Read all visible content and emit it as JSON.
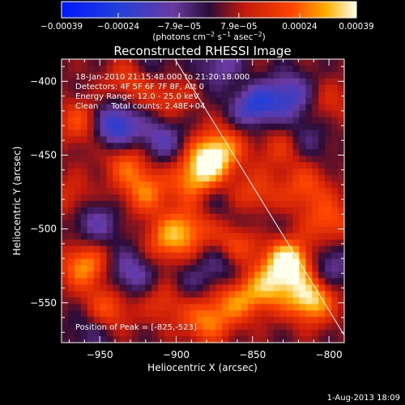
{
  "chart_data": {
    "type": "heatmap",
    "title": "Reconstructed RHESSI Image",
    "xlabel": "Heliocentric X (arcsec)",
    "ylabel": "Heliocentric Y (arcsec)",
    "xlim": [
      -975,
      -790
    ],
    "ylim": [
      -577,
      -385
    ],
    "x_ticks": [
      -950,
      -900,
      -850,
      -800
    ],
    "x_tick_labels": [
      "−950",
      "−900",
      "−850",
      "−800"
    ],
    "y_ticks": [
      -400,
      -450,
      -500,
      -550
    ],
    "y_tick_labels": [
      "−400",
      "−450",
      "−500",
      "−550"
    ],
    "colorbar": {
      "range": [
        -0.00039,
        0.00039
      ],
      "ticks": [
        -0.00039,
        -0.00024,
        -7.9e-05,
        7.9e-05,
        0.00024,
        0.00039
      ],
      "tick_labels": [
        "−0.00039",
        "−0.00024",
        "−7.9e−05",
        "7.9e−05",
        "0.00024",
        "0.00039"
      ],
      "unit_prefix": "(photons cm",
      "unit_exp1": "−2",
      "unit_mid": " s",
      "unit_exp2": "−1",
      "unit_mid2": " asec",
      "unit_exp3": "−2",
      "unit_suffix": ")"
    },
    "info_lines": [
      "18-Jan-2010 21:15:48.000 to 21:20:18.000",
      "Detectors: 4F 5F 6F 7F 8F, Att 0",
      "Energy Range: 12.0 - 25.0 keV",
      "Clean     Total counts: 2.48E+04"
    ],
    "peak_label": "Position of Peak = [-825,-523]",
    "peak": [
      -825,
      -523
    ],
    "limb_line": [
      [
        -902,
        -383
      ],
      [
        -787,
        -577
      ]
    ],
    "sources": [
      {
        "x": -826,
        "y": -523,
        "w": 0.00039
      },
      {
        "x": -812,
        "y": -548,
        "w": 0.00033
      },
      {
        "x": -840,
        "y": -540,
        "w": 0.00022
      },
      {
        "x": -880,
        "y": -455,
        "w": 0.00027
      },
      {
        "x": -870,
        "y": -445,
        "w": 0.0002
      },
      {
        "x": -888,
        "y": -470,
        "w": 0.00022
      },
      {
        "x": -920,
        "y": -475,
        "w": 0.0002
      },
      {
        "x": -932,
        "y": -455,
        "w": 0.00018
      },
      {
        "x": -905,
        "y": -508,
        "w": 0.00022
      },
      {
        "x": -890,
        "y": -498,
        "w": 0.00018
      },
      {
        "x": -960,
        "y": -525,
        "w": 0.00025
      },
      {
        "x": -962,
        "y": -428,
        "w": 0.00018
      },
      {
        "x": -930,
        "y": -400,
        "w": 0.00016
      },
      {
        "x": -905,
        "y": -410,
        "w": 0.00014
      },
      {
        "x": -848,
        "y": -478,
        "w": 0.00017
      },
      {
        "x": -860,
        "y": -510,
        "w": 0.0002
      },
      {
        "x": -830,
        "y": -445,
        "w": 0.00014
      },
      {
        "x": -815,
        "y": -472,
        "w": 0.00016
      },
      {
        "x": -800,
        "y": -495,
        "w": 0.00018
      },
      {
        "x": -945,
        "y": -555,
        "w": 0.0002
      },
      {
        "x": -880,
        "y": -562,
        "w": 0.00022
      },
      {
        "x": -860,
        "y": -548,
        "w": 0.0002
      },
      {
        "x": -905,
        "y": -548,
        "w": 0.00017
      },
      {
        "x": -968,
        "y": -480,
        "w": 0.00012
      },
      {
        "x": -800,
        "y": -415,
        "w": 0.0001
      },
      {
        "x": -940,
        "y": -500,
        "w": 0.00012
      },
      {
        "x": -855,
        "y": -405,
        "w": 0.0001
      },
      {
        "x": -940,
        "y": -430,
        "w": -0.0003
      },
      {
        "x": -940,
        "y": -500,
        "w": -0.00014
      },
      {
        "x": -850,
        "y": -415,
        "w": -0.0003
      },
      {
        "x": -826,
        "y": -410,
        "w": -0.00022
      },
      {
        "x": -910,
        "y": -440,
        "w": -0.00018
      },
      {
        "x": -955,
        "y": -495,
        "w": -0.00016
      },
      {
        "x": -930,
        "y": -530,
        "w": -0.00018
      },
      {
        "x": -870,
        "y": -525,
        "w": -0.00014
      },
      {
        "x": -800,
        "y": -525,
        "w": -0.00016
      },
      {
        "x": -815,
        "y": -440,
        "w": -0.00012
      },
      {
        "x": -880,
        "y": -480,
        "w": -0.00012
      },
      {
        "x": -850,
        "y": -495,
        "w": -0.0001
      },
      {
        "x": -955,
        "y": -568,
        "w": -0.00012
      },
      {
        "x": -895,
        "y": -540,
        "w": -0.00012
      },
      {
        "x": -870,
        "y": -390,
        "w": -0.00016
      },
      {
        "x": -915,
        "y": -392,
        "w": -0.0001
      }
    ]
  },
  "footer": {
    "date": "1-Aug-2013 18:09"
  }
}
